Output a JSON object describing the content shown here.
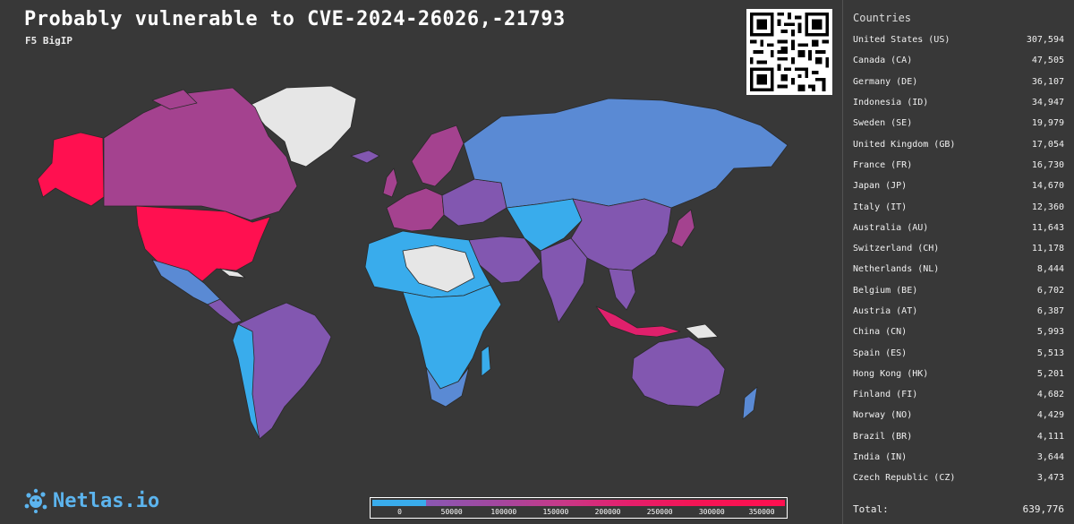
{
  "header": {
    "title": "Probably vulnerable to CVE-2024-26026,-21793",
    "subtitle": "F5 BigIP"
  },
  "colors": {
    "background": "#383838",
    "very_high": "#ff1050",
    "high": "#a4428f",
    "mid": "#8257b0",
    "low": "#5a8ad4",
    "very_low": "#39acec",
    "no_data": "#e6e6e6",
    "brand": "#5cb4ee"
  },
  "brand": {
    "name": "Netlas.io",
    "icon": "netlas-logo-icon"
  },
  "sidebar": {
    "heading": "Countries",
    "countries": [
      {
        "name": "United States (US)",
        "count": "307,594"
      },
      {
        "name": "Canada (CA)",
        "count": "47,505"
      },
      {
        "name": "Germany (DE)",
        "count": "36,107"
      },
      {
        "name": "Indonesia (ID)",
        "count": "34,947"
      },
      {
        "name": "Sweden (SE)",
        "count": "19,979"
      },
      {
        "name": "United Kingdom (GB)",
        "count": "17,054"
      },
      {
        "name": "France (FR)",
        "count": "16,730"
      },
      {
        "name": "Japan (JP)",
        "count": "14,670"
      },
      {
        "name": "Italy (IT)",
        "count": "12,360"
      },
      {
        "name": "Australia (AU)",
        "count": "11,643"
      },
      {
        "name": "Switzerland (CH)",
        "count": "11,178"
      },
      {
        "name": "Netherlands (NL)",
        "count": "8,444"
      },
      {
        "name": "Belgium (BE)",
        "count": "6,702"
      },
      {
        "name": "Austria (AT)",
        "count": "6,387"
      },
      {
        "name": "China (CN)",
        "count": "5,993"
      },
      {
        "name": "Spain (ES)",
        "count": "5,513"
      },
      {
        "name": "Hong Kong (HK)",
        "count": "5,201"
      },
      {
        "name": "Finland (FI)",
        "count": "4,682"
      },
      {
        "name": "Norway (NO)",
        "count": "4,429"
      },
      {
        "name": "Brazil (BR)",
        "count": "4,111"
      },
      {
        "name": "India (IN)",
        "count": "3,644"
      },
      {
        "name": "Czech Republic (CZ)",
        "count": "3,473"
      }
    ],
    "total_label": "Total:",
    "total_value": "639,776"
  },
  "legend": {
    "ticks": [
      "0",
      "50000",
      "100000",
      "150000",
      "200000",
      "250000",
      "300000",
      "350000"
    ]
  }
}
